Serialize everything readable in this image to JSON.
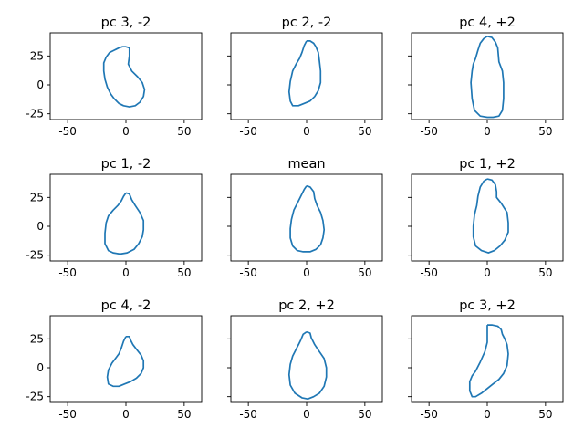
{
  "chart_data": [
    {
      "type": "line",
      "title": "pc 3, -2",
      "xlim": [
        -65,
        65
      ],
      "ylim": [
        -30,
        45
      ],
      "xticks": [
        "-50",
        "0",
        "50"
      ],
      "yticks": [
        "25",
        "0",
        "-25"
      ],
      "show_yticklabels": true,
      "series": [
        {
          "x": [
            0,
            3,
            3,
            2,
            5,
            10,
            14,
            16,
            15,
            12,
            8,
            3,
            -2,
            -6,
            -10,
            -13,
            -16,
            -18,
            -19,
            -19,
            -17,
            -14,
            -10,
            -6,
            -3,
            0
          ],
          "y": [
            33,
            32,
            25,
            18,
            12,
            7,
            2,
            -4,
            -10,
            -15,
            -18,
            -19,
            -18,
            -16,
            -12,
            -8,
            -2,
            5,
            12,
            19,
            24,
            28,
            30,
            32,
            33,
            33
          ]
        }
      ]
    },
    {
      "type": "line",
      "title": "pc 2, -2",
      "xlim": [
        -65,
        65
      ],
      "ylim": [
        -30,
        45
      ],
      "xticks": [
        "-50",
        "0",
        "50"
      ],
      "yticks": [
        "25",
        "0",
        "-25"
      ],
      "show_yticklabels": false,
      "series": [
        {
          "x": [
            0,
            3,
            6,
            8,
            10,
            11,
            12,
            12,
            10,
            7,
            3,
            -2,
            -7,
            -12,
            -14,
            -15,
            -14,
            -12,
            -9,
            -6,
            -4,
            -2,
            0
          ],
          "y": [
            38,
            38,
            36,
            33,
            28,
            21,
            12,
            2,
            -5,
            -10,
            -14,
            -16,
            -18,
            -18,
            -14,
            -6,
            3,
            12,
            18,
            23,
            28,
            34,
            38
          ]
        }
      ]
    },
    {
      "type": "line",
      "title": "pc 4, +2",
      "xlim": [
        -65,
        65
      ],
      "ylim": [
        -30,
        45
      ],
      "xticks": [
        "-50",
        "0",
        "50"
      ],
      "yticks": [
        "25",
        "0",
        "-25"
      ],
      "show_yticklabels": false,
      "series": [
        {
          "x": [
            0,
            4,
            7,
            9,
            10,
            13,
            14,
            14,
            13,
            10,
            5,
            0,
            -6,
            -11,
            -13,
            -14,
            -13,
            -12,
            -10,
            -8,
            -6,
            -3,
            0
          ],
          "y": [
            42,
            41,
            37,
            32,
            20,
            12,
            2,
            -12,
            -22,
            -27,
            -28,
            -28,
            -27,
            -22,
            -12,
            2,
            12,
            18,
            23,
            30,
            36,
            40,
            42
          ]
        }
      ]
    },
    {
      "type": "line",
      "title": "pc 1, -2",
      "xlim": [
        -65,
        65
      ],
      "ylim": [
        -30,
        45
      ],
      "xticks": [
        "-50",
        "0",
        "50"
      ],
      "yticks": [
        "25",
        "0",
        "-25"
      ],
      "show_yticklabels": true,
      "series": [
        {
          "x": [
            0,
            3,
            5,
            8,
            12,
            15,
            15,
            14,
            11,
            7,
            1,
            -5,
            -11,
            -15,
            -18,
            -18,
            -17,
            -15,
            -11,
            -7,
            -4,
            -2,
            0
          ],
          "y": [
            29,
            28,
            23,
            18,
            12,
            5,
            -3,
            -9,
            -15,
            -20,
            -23,
            -24,
            -23,
            -21,
            -15,
            -6,
            3,
            9,
            14,
            18,
            22,
            26,
            29
          ]
        }
      ]
    },
    {
      "type": "line",
      "title": "mean",
      "xlim": [
        -65,
        65
      ],
      "ylim": [
        -30,
        45
      ],
      "xticks": [
        "-50",
        "0",
        "50"
      ],
      "yticks": [
        "25",
        "0",
        "-25"
      ],
      "show_yticklabels": false,
      "series": [
        {
          "x": [
            0,
            3,
            6,
            7,
            9,
            12,
            14,
            15,
            14,
            12,
            8,
            3,
            -3,
            -8,
            -12,
            -14,
            -14,
            -13,
            -11,
            -8,
            -5,
            -2,
            0
          ],
          "y": [
            35,
            34,
            30,
            24,
            18,
            12,
            5,
            -3,
            -10,
            -16,
            -20,
            -22,
            -22,
            -21,
            -17,
            -10,
            -2,
            6,
            14,
            20,
            26,
            32,
            35
          ]
        }
      ]
    },
    {
      "type": "line",
      "title": "pc 1, +2",
      "xlim": [
        -65,
        65
      ],
      "ylim": [
        -30,
        45
      ],
      "xticks": [
        "-50",
        "0",
        "50"
      ],
      "yticks": [
        "25",
        "0",
        "-25"
      ],
      "show_yticklabels": false,
      "series": [
        {
          "x": [
            0,
            4,
            7,
            8,
            8,
            12,
            17,
            18,
            18,
            15,
            11,
            6,
            1,
            -5,
            -10,
            -12,
            -12,
            -11,
            -9,
            -8,
            -6,
            -3,
            0
          ],
          "y": [
            41,
            40,
            36,
            30,
            25,
            20,
            12,
            3,
            -5,
            -12,
            -17,
            -21,
            -23,
            -21,
            -17,
            -9,
            0,
            10,
            18,
            26,
            34,
            39,
            41
          ]
        }
      ]
    },
    {
      "type": "line",
      "title": "pc 4, -2",
      "xlim": [
        -65,
        65
      ],
      "ylim": [
        -30,
        45
      ],
      "xticks": [
        "-50",
        "0",
        "50"
      ],
      "yticks": [
        "25",
        "0",
        "-25"
      ],
      "show_yticklabels": true,
      "series": [
        {
          "x": [
            0,
            3,
            4,
            6,
            9,
            13,
            15,
            15,
            13,
            9,
            4,
            -1,
            -6,
            -11,
            -15,
            -16,
            -15,
            -12,
            -9,
            -6,
            -4,
            -2,
            0
          ],
          "y": [
            27,
            27,
            24,
            20,
            16,
            11,
            6,
            0,
            -5,
            -9,
            -12,
            -14,
            -16,
            -16,
            -14,
            -8,
            -2,
            4,
            8,
            12,
            17,
            23,
            27
          ]
        }
      ]
    },
    {
      "type": "line",
      "title": "pc 2, +2",
      "xlim": [
        -65,
        65
      ],
      "ylim": [
        -30,
        45
      ],
      "xticks": [
        "-50",
        "0",
        "50"
      ],
      "yticks": [
        "25",
        "0",
        "-25"
      ],
      "show_yticklabels": false,
      "series": [
        {
          "x": [
            0,
            3,
            4,
            7,
            11,
            15,
            17,
            17,
            15,
            11,
            6,
            1,
            -4,
            -10,
            -14,
            -15,
            -14,
            -12,
            -9,
            -7,
            -5,
            -3,
            0
          ],
          "y": [
            31,
            30,
            26,
            20,
            14,
            8,
            0,
            -8,
            -16,
            -22,
            -25,
            -27,
            -26,
            -22,
            -15,
            -6,
            3,
            10,
            16,
            20,
            24,
            29,
            31
          ]
        }
      ]
    },
    {
      "type": "line",
      "title": "pc 3, +2",
      "xlim": [
        -65,
        65
      ],
      "ylim": [
        -30,
        45
      ],
      "xticks": [
        "-50",
        "0",
        "50"
      ],
      "yticks": [
        "25",
        "0",
        "-25"
      ],
      "show_yticklabels": false,
      "series": [
        {
          "x": [
            0,
            4,
            9,
            12,
            13,
            15,
            17,
            18,
            17,
            14,
            10,
            5,
            0,
            -5,
            -10,
            -13,
            -15,
            -15,
            -13,
            -10,
            -6,
            -2,
            0,
            0,
            0
          ],
          "y": [
            37,
            37,
            36,
            33,
            29,
            25,
            20,
            12,
            2,
            -5,
            -10,
            -14,
            -18,
            -22,
            -25,
            -25,
            -20,
            -12,
            -7,
            -3,
            5,
            14,
            22,
            29,
            37
          ]
        }
      ]
    }
  ]
}
